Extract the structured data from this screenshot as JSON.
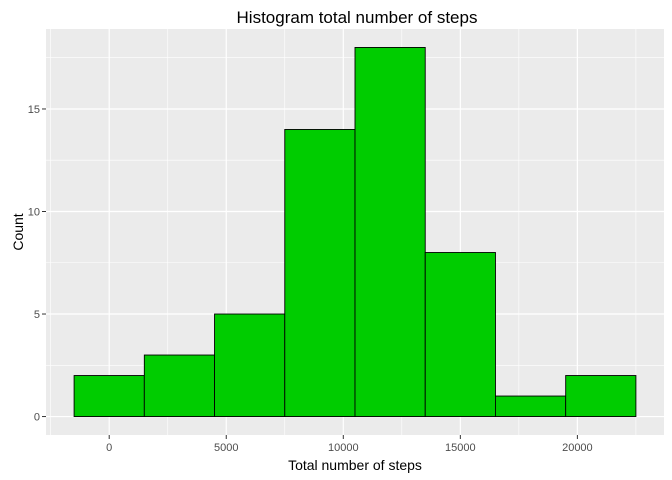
{
  "chart_data": {
    "type": "bar",
    "title": "Histogram total number of steps",
    "xlabel": "Total number of steps",
    "ylabel": "Count",
    "bins": [
      {
        "x0": -1500,
        "x1": 1500,
        "count": 2
      },
      {
        "x0": 1500,
        "x1": 4500,
        "count": 3
      },
      {
        "x0": 4500,
        "x1": 7500,
        "count": 5
      },
      {
        "x0": 7500,
        "x1": 10500,
        "count": 14
      },
      {
        "x0": 10500,
        "x1": 13500,
        "count": 18
      },
      {
        "x0": 13500,
        "x1": 16500,
        "count": 8
      },
      {
        "x0": 16500,
        "x1": 19500,
        "count": 1
      },
      {
        "x0": 19500,
        "x1": 22500,
        "count": 2
      }
    ],
    "xlim": [
      -2700,
      23700
    ],
    "ylim": [
      -0.9,
      18.9
    ],
    "x_ticks": [
      0,
      5000,
      10000,
      15000,
      20000
    ],
    "x_tick_labels": [
      "0",
      "5000",
      "10000",
      "15000",
      "20000"
    ],
    "y_ticks": [
      0,
      5,
      10,
      15
    ],
    "y_tick_labels": [
      "0",
      "5",
      "10",
      "15"
    ],
    "grid": true,
    "panel_color": "#ebebeb",
    "bar_fill": "#00cc00",
    "bar_stroke": "#000000"
  }
}
